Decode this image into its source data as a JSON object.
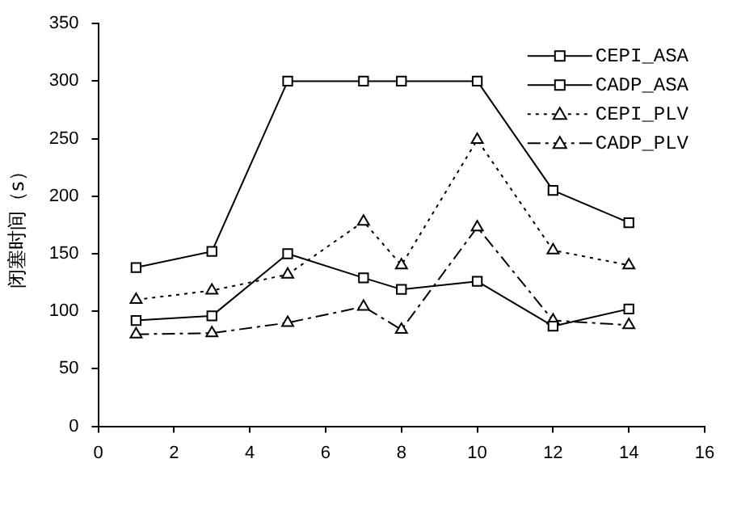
{
  "chart_data": {
    "type": "line",
    "ylabel": "闭塞时间（s）",
    "x": [
      1,
      3,
      5,
      7,
      8,
      10,
      12,
      14
    ],
    "xlim": [
      0,
      16
    ],
    "xticks": [
      0,
      2,
      4,
      6,
      8,
      10,
      12,
      14,
      16
    ],
    "ylim": [
      0,
      350
    ],
    "yticks": [
      0,
      50,
      100,
      150,
      200,
      250,
      300,
      350
    ],
    "grid": false,
    "legend": "top right",
    "series": [
      {
        "name": "CEPI_ASA",
        "color": "#000000",
        "values": [
          138,
          152,
          300,
          300,
          300,
          300,
          205,
          177
        ],
        "marker": "square",
        "line_style": "solid"
      },
      {
        "name": "CADP_ASA",
        "color": "#000000",
        "values": [
          92,
          96,
          150,
          129,
          119,
          126,
          87,
          102
        ],
        "marker": "square",
        "line_style": "solid"
      },
      {
        "name": "CEPI_PLV",
        "color": "#000000",
        "values": [
          110,
          118,
          132,
          178,
          140,
          249,
          153,
          140
        ],
        "marker": "triangle",
        "line_style": "dotted"
      },
      {
        "name": "CADP_PLV",
        "color": "#000000",
        "values": [
          80,
          81,
          90,
          104,
          84,
          173,
          92,
          88
        ],
        "marker": "triangle",
        "line_style": "dashed"
      }
    ]
  }
}
